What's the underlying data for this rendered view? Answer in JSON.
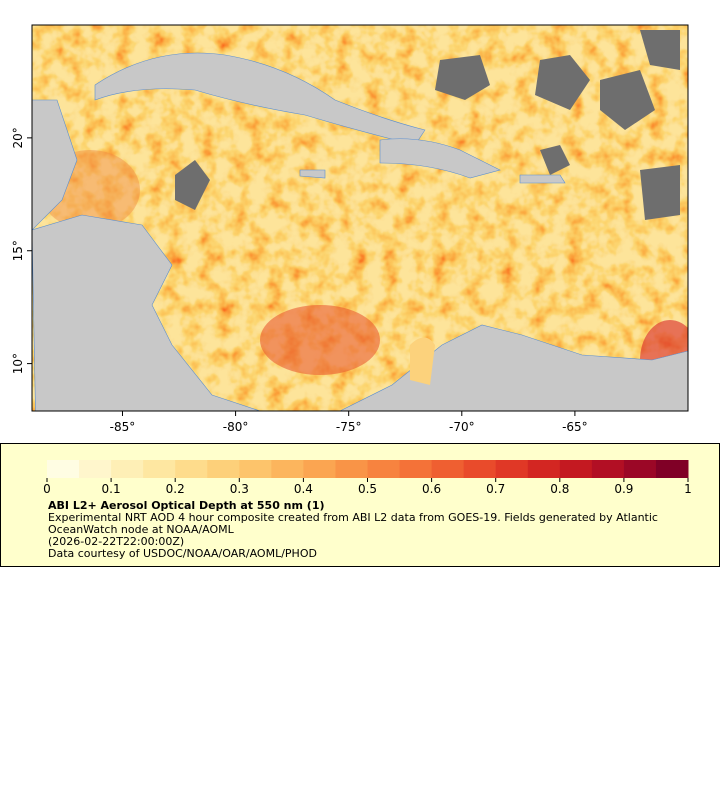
{
  "map": {
    "xlim": [
      -89,
      -60
    ],
    "ylim": [
      7.9,
      25
    ],
    "xticks": [
      {
        "value": -85,
        "label": "-85°"
      },
      {
        "value": -80,
        "label": "-80°"
      },
      {
        "value": -75,
        "label": "-75°"
      },
      {
        "value": -70,
        "label": "-70°"
      },
      {
        "value": -65,
        "label": "-65°"
      }
    ],
    "yticks": [
      {
        "value": 10,
        "label": "10°"
      },
      {
        "value": 15,
        "label": "15°"
      },
      {
        "value": 20,
        "label": "20°"
      }
    ]
  },
  "colorbar": {
    "range": [
      0,
      1
    ],
    "ticks": [
      0,
      0.1,
      0.2,
      0.3,
      0.4,
      0.5,
      0.6,
      0.7,
      0.8,
      0.9,
      1
    ],
    "colors": [
      "#fffde3",
      "#fff6cc",
      "#feefb6",
      "#fee7a1",
      "#fedc8c",
      "#fdd07a",
      "#fdc46b",
      "#fcb55d",
      "#fba551",
      "#f99447",
      "#f7833f",
      "#f47238",
      "#ef5f31",
      "#e94b2b",
      "#e03826",
      "#d32622",
      "#c41921",
      "#b20f24",
      "#9b0726",
      "#800026"
    ],
    "title": "ABI L2+ Aerosol Optical Depth at 550 nm (1)",
    "lines": [
      "Experimental NRT AOD 4 hour composite created from ABI L2 data from GOES-19. Fields generated by Atlantic OceanWatch node at NOAA/AOML",
      "(2026-02-22T22:00:00Z)",
      "Data courtesy of USDOC/NOAA/OAR/AOML/PHOD"
    ]
  }
}
